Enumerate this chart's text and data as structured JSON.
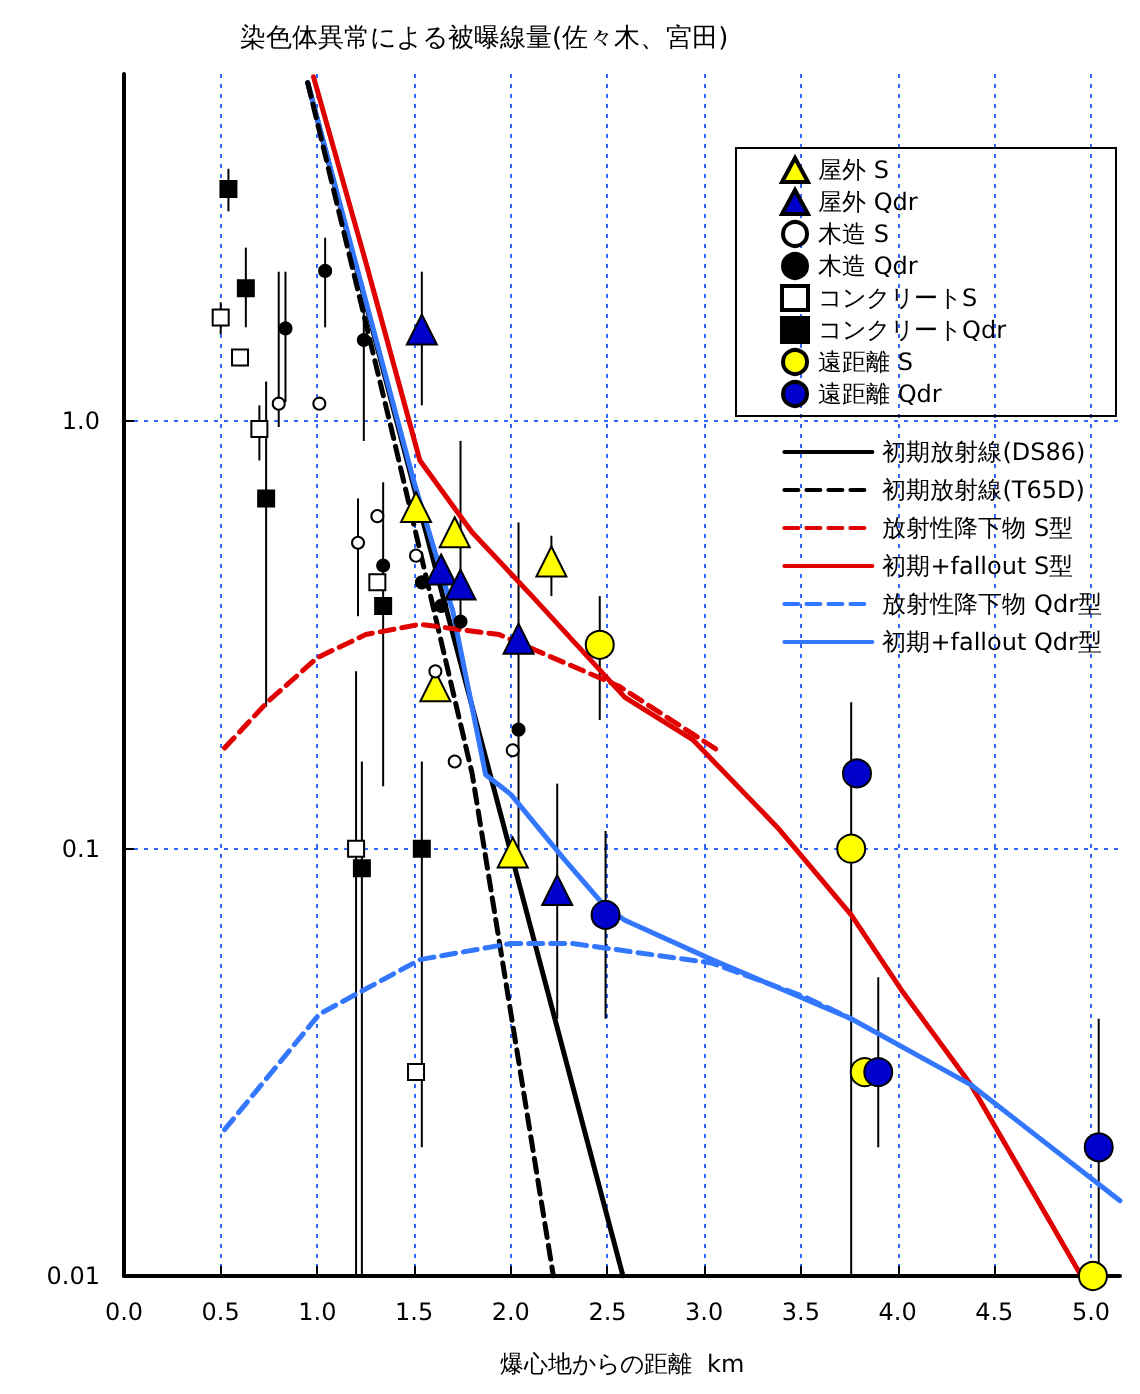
{
  "chart_data": {
    "type": "scatter",
    "title": "染色体異常による被曝線量(佐々木、宮田)",
    "xlabel": "爆心地からの距離  km",
    "log": "y",
    "grid": true,
    "legend": "top right",
    "xlim": [
      0,
      5.15
    ],
    "xticks": [
      {
        "value": 0,
        "label": "0.0"
      },
      {
        "value": 0.5,
        "label": "0.5"
      },
      {
        "value": 1,
        "label": "1.0"
      },
      {
        "value": 1.5,
        "label": "1.5"
      },
      {
        "value": 2,
        "label": "2.0"
      },
      {
        "value": 2.5,
        "label": "2.5"
      },
      {
        "value": 3,
        "label": "3.0"
      },
      {
        "value": 3.5,
        "label": "3.5"
      },
      {
        "value": 4,
        "label": "4.0"
      },
      {
        "value": 4.5,
        "label": "4.5"
      },
      {
        "value": 5,
        "label": "5.0"
      }
    ],
    "ylim": [
      0.01,
      6.5
    ],
    "yticks": [
      0.01,
      0.1,
      {
        "value": 1,
        "label": "1.0"
      }
    ],
    "series": [
      {
        "name": "屋外 S",
        "marker": "triangle",
        "color": "#ffff00",
        "x": [
          1.51,
          1.71,
          1.61,
          2.21,
          2.01
        ],
        "values": [
          0.63,
          0.55,
          0.24,
          0.47,
          0.098
        ],
        "errors": [
          null,
          null,
          null,
          [
            0.39,
            0.54
          ],
          null
        ]
      },
      {
        "name": "屋外 Qdr",
        "marker": "triangle",
        "color": "#0000cc",
        "x": [
          1.54,
          1.64,
          1.74,
          2.04,
          2.24
        ],
        "values": [
          1.64,
          0.45,
          0.415,
          0.31,
          0.08
        ],
        "errors": [
          [
            1.09,
            2.24
          ],
          null,
          null,
          [
            0.1,
            0.58
          ],
          [
            0.04,
            0.142
          ]
        ]
      },
      {
        "name": "木造 S",
        "marker": "circle",
        "color": "#ffffff",
        "x": [
          0.8,
          1.01,
          1.21,
          1.31,
          1.51,
          1.61,
          1.71,
          2.01
        ],
        "values": [
          1.1,
          1.1,
          0.52,
          0.6,
          0.485,
          0.26,
          0.16,
          0.17
        ],
        "errors": [
          [
            0.97,
            2.24
          ],
          null,
          [
            0.35,
            0.66
          ],
          null,
          null,
          null,
          null,
          null
        ]
      },
      {
        "name": "木造 Qdr",
        "marker": "circle",
        "color": "#000000",
        "x": [
          0.835,
          1.04,
          1.24,
          1.34,
          1.54,
          1.64,
          1.74,
          2.04
        ],
        "values": [
          1.65,
          2.25,
          1.55,
          0.46,
          0.42,
          0.37,
          0.34,
          0.19
        ],
        "errors": [
          [
            1.11,
            2.24
          ],
          [
            1.66,
            2.69
          ],
          [
            0.9,
            2.06
          ],
          null,
          null,
          null,
          [
            0.34,
            0.9
          ],
          null
        ]
      },
      {
        "name": "コンクリートS",
        "marker": "square",
        "color": "#ffffff",
        "x": [
          0.5,
          0.6,
          0.7,
          1.31,
          1.2,
          1.51
        ],
        "values": [
          1.75,
          1.41,
          0.96,
          0.42,
          0.1,
          0.03
        ],
        "errors": [
          [
            1.6,
            1.9
          ],
          null,
          [
            0.81,
            1.09
          ],
          null,
          [
            0.01,
            0.26
          ],
          null
        ]
      },
      {
        "name": "コンクリートQdr",
        "marker": "square",
        "color": "#000000",
        "x": [
          0.54,
          0.63,
          0.735,
          1.34,
          1.23,
          1.54
        ],
        "values": [
          3.5,
          2.05,
          0.66,
          0.37,
          0.09,
          0.1
        ],
        "errors": [
          [
            3.1,
            3.9
          ],
          [
            1.66,
            2.55
          ],
          [
            0.215,
            1.24
          ],
          [
            0.14,
            0.72
          ],
          [
            0.01,
            0.16
          ],
          [
            0.02,
            0.16
          ]
        ]
      },
      {
        "name": "遠距離 S",
        "marker": "circle",
        "color": "#ffff00",
        "x": [
          2.46,
          3.76,
          3.83,
          5.01
        ],
        "values": [
          0.3,
          0.1,
          0.03,
          0.01
        ],
        "errors": [
          [
            0.2,
            0.39
          ],
          [
            0.01,
            0.22
          ],
          null,
          null
        ]
      },
      {
        "name": "遠距離 Qdr",
        "marker": "circle",
        "color": "#0000cc",
        "x": [
          2.49,
          3.79,
          3.9,
          5.04
        ],
        "values": [
          0.07,
          0.15,
          0.03,
          0.02
        ],
        "errors": [
          [
            0.04,
            0.11
          ],
          null,
          [
            0.02,
            0.05
          ],
          [
            0.01,
            0.04
          ]
        ]
      },
      {
        "name": "初期放射線(DS86)",
        "type": "line",
        "line_style": "solid",
        "color": "#000000",
        "x": [
          0.95,
          1.5,
          2.0,
          2.58
        ],
        "values": [
          6.2,
          0.7,
          0.098,
          0.01
        ]
      },
      {
        "name": "初期放射線(T65D)",
        "type": "line",
        "line_style": "dashed",
        "color": "#000000",
        "x": [
          0.95,
          1.39,
          1.8,
          2.22
        ],
        "values": [
          6.2,
          0.93,
          0.15,
          0.01
        ]
      },
      {
        "name": "放射性降下物 S型",
        "type": "line",
        "line_style": "dashed",
        "color": "#e00000",
        "x": [
          0.52,
          0.74,
          1.0,
          1.25,
          1.53,
          1.94,
          2.56,
          3.07
        ],
        "values": [
          0.172,
          0.22,
          0.28,
          0.317,
          0.335,
          0.317,
          0.24,
          0.17
        ]
      },
      {
        "name": "初期+fallout S型",
        "type": "line",
        "line_style": "solid",
        "color": "#e00000",
        "x": [
          0.98,
          1.25,
          1.53,
          1.8,
          2.11,
          2.59,
          2.94,
          3.38,
          3.76,
          4.03,
          4.38,
          4.95
        ],
        "values": [
          6.4,
          2.36,
          0.81,
          0.55,
          0.39,
          0.226,
          0.18,
          0.112,
          0.07,
          0.046,
          0.028,
          0.01
        ]
      },
      {
        "name": "放射性降下物 Qdr型",
        "type": "line",
        "line_style": "dashed",
        "color": "#3377ff",
        "x": [
          0.52,
          1.01,
          1.53,
          2.0,
          2.32,
          3.04,
          3.52,
          3.76
        ],
        "values": [
          0.022,
          0.041,
          0.055,
          0.06,
          0.06,
          0.054,
          0.045,
          0.04
        ]
      },
      {
        "name": "初期+fallout Qdr型",
        "type": "line",
        "line_style": "solid",
        "color": "#3377ff",
        "x": [
          0.95,
          1.5,
          1.7,
          1.87,
          2.0,
          2.28,
          2.49,
          2.59,
          3.04,
          3.76,
          4.38,
          5.15
        ],
        "values": [
          6.2,
          0.72,
          0.36,
          0.149,
          0.134,
          0.094,
          0.073,
          0.068,
          0.055,
          0.04,
          0.028,
          0.015
        ]
      }
    ]
  }
}
